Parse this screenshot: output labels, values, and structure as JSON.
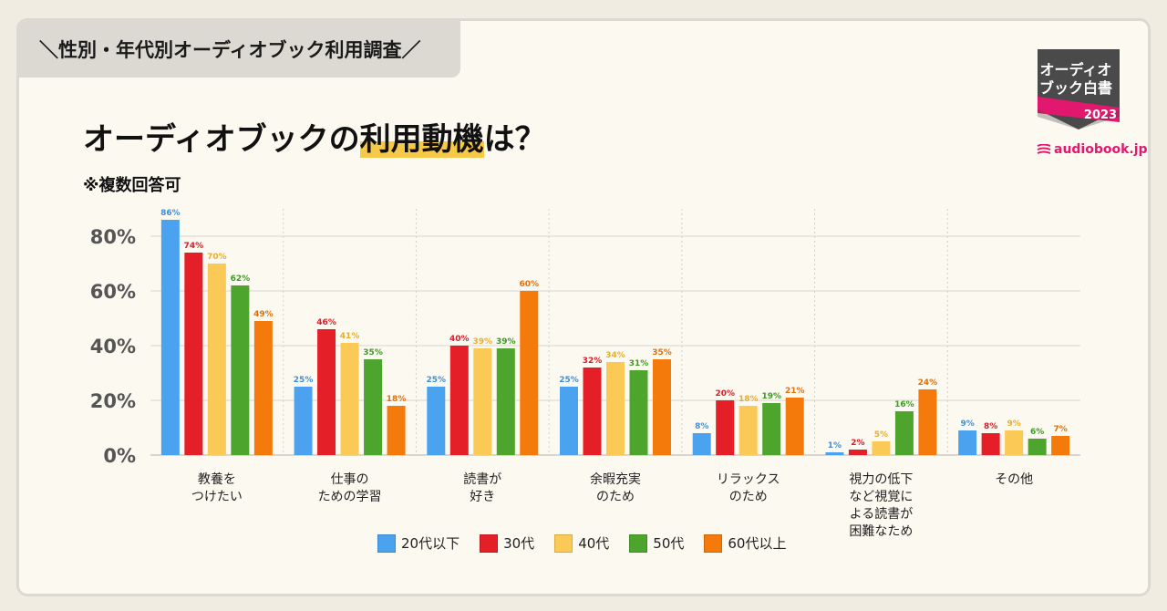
{
  "header": {
    "tag": "＼性別・年代別オーディオブック利用調査／",
    "title_pre": "オーディオブックの",
    "title_highlight": "利用動機",
    "title_post": "は？",
    "note": "※複数回答可"
  },
  "badge": {
    "line1": "オーディオ",
    "line2": "ブック白書",
    "year": "2023"
  },
  "brand": "audiobook.jp",
  "colors": {
    "20s": "#4ba3f0",
    "30s": "#e41f28",
    "40s": "#fbc955",
    "50s": "#4da52e",
    "60s": "#f47a0c",
    "highlight": "#f7c948",
    "brand": "#e2186e"
  },
  "chart_data": {
    "type": "bar",
    "title": "オーディオブックの利用動機は？",
    "ylim": [
      0,
      90
    ],
    "yticks": [
      0,
      20,
      40,
      60,
      80
    ],
    "ytick_labels": [
      "0%",
      "20%",
      "40%",
      "60%",
      "80%"
    ],
    "categories": [
      [
        "教養を",
        "つけたい"
      ],
      [
        "仕事の",
        "ための学習"
      ],
      [
        "読書が",
        "好き"
      ],
      [
        "余暇充実",
        "のため"
      ],
      [
        "リラックス",
        "のため"
      ],
      [
        "視力の低下",
        "など視覚に",
        "よる読書が",
        "困難なため"
      ],
      [
        "その他"
      ]
    ],
    "series": [
      {
        "name": "20代以下",
        "color": "#4ba3f0",
        "label_color": "#3f8fd6",
        "values": [
          86,
          25,
          25,
          25,
          8,
          1,
          9
        ],
        "labels": [
          "86%",
          "25%",
          "25%",
          "25%",
          "8%",
          "1%",
          "9%"
        ]
      },
      {
        "name": "30代",
        "color": "#e41f28",
        "label_color": "#d42029",
        "values": [
          74,
          46,
          40,
          32,
          20,
          2,
          8
        ],
        "labels": [
          "74%",
          "46%",
          "40%",
          "32%",
          "20%",
          "2%",
          "8%"
        ]
      },
      {
        "name": "40代",
        "color": "#fbc955",
        "label_color": "#e8ad2e",
        "values": [
          70,
          41,
          39,
          34,
          18,
          5,
          9
        ],
        "labels": [
          "70%",
          "41%",
          "39%",
          "34%",
          "18%",
          "5%",
          "9%"
        ]
      },
      {
        "name": "50代",
        "color": "#4da52e",
        "label_color": "#3e9a22",
        "values": [
          62,
          35,
          39,
          31,
          19,
          16,
          6
        ],
        "labels": [
          "62%",
          "35%",
          "39%",
          "31%",
          "19%",
          "16%",
          "6%"
        ]
      },
      {
        "name": "60代以上",
        "color": "#f47a0c",
        "label_color": "#e0700c",
        "values": [
          49,
          18,
          60,
          35,
          21,
          24,
          7
        ],
        "labels": [
          "49%",
          "18%",
          "60%",
          "35%",
          "21%",
          "24%",
          "7%"
        ]
      }
    ],
    "legend_position": "bottom-center"
  }
}
